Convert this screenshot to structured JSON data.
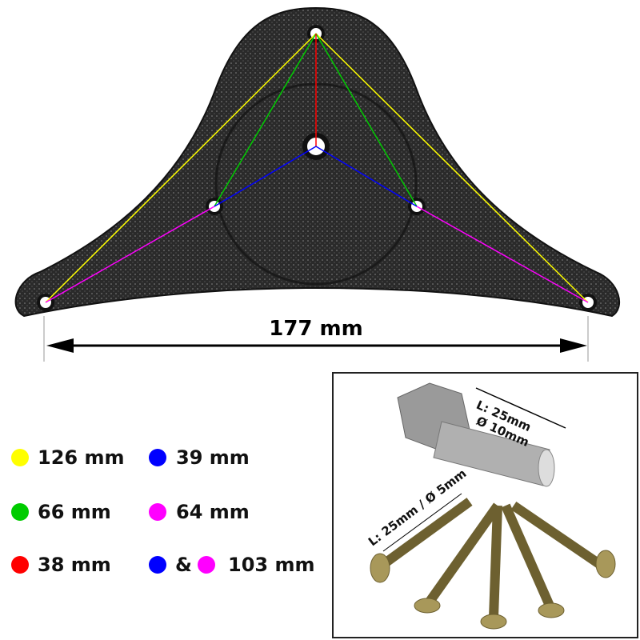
{
  "overall_width_label": "177 mm",
  "legend": [
    {
      "color": "#ffff00",
      "label": "126 mm"
    },
    {
      "color": "#00cc00",
      "label": "66 mm"
    },
    {
      "color": "#ff0000",
      "label": "38 mm"
    },
    {
      "color": "#0000ff",
      "label": "39 mm"
    },
    {
      "color": "#ff00ff",
      "label": "64 mm"
    }
  ],
  "combined": {
    "colors": [
      "#0000ff",
      "#ff00ff"
    ],
    "ampersand": "&",
    "label": "103 mm"
  },
  "bolt": {
    "length": "L: 25mm",
    "diameter": "Ø 10mm"
  },
  "screw": {
    "label": "L: 25mm / Ø 5mm"
  }
}
